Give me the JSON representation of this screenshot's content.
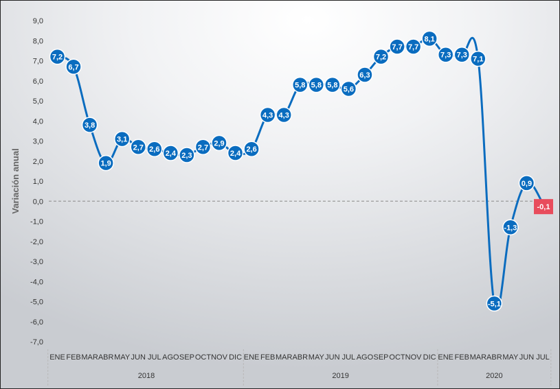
{
  "chart_data": {
    "type": "line",
    "ylabel": "Variación anual",
    "ylim": [
      -7,
      9
    ],
    "yticks": [
      "9,0",
      "8,0",
      "7,0",
      "6,0",
      "5,0",
      "4,0",
      "3,0",
      "2,0",
      "1,0",
      "0,0",
      "-1,0",
      "-2,0",
      "-3,0",
      "-4,0",
      "-5,0",
      "-6,0",
      "-7,0"
    ],
    "categories": [
      "ENE",
      "FEB",
      "MAR",
      "ABR",
      "MAY",
      "JUN",
      "JUL",
      "AGO",
      "SEP",
      "OCT",
      "NOV",
      "DIC",
      "ENE",
      "FEB",
      "MAR",
      "ABR",
      "MAY",
      "JUN",
      "JUL",
      "AGO",
      "SEP",
      "OCT",
      "NOV",
      "DIC",
      "ENE",
      "FEB",
      "MAR",
      "ABR",
      "MAY",
      "JUN",
      "JUL"
    ],
    "years": [
      "2018",
      "2019",
      "2020"
    ],
    "values": [
      7.2,
      6.7,
      3.8,
      1.9,
      3.1,
      2.7,
      2.6,
      2.4,
      2.3,
      2.7,
      2.9,
      2.4,
      2.6,
      4.3,
      4.3,
      5.8,
      5.8,
      5.8,
      5.6,
      6.3,
      7.2,
      7.7,
      7.7,
      8.1,
      7.3,
      7.3,
      7.1,
      -5.1,
      -1.3,
      0.9,
      -0.1
    ],
    "labels": [
      "7,2",
      "6,7",
      "3,8",
      "1,9",
      "3,1",
      "2,7",
      "2,6",
      "2,4",
      "2,3",
      "2,7",
      "2,9",
      "2,4",
      "2,6",
      "4,3",
      "4,3",
      "5,8",
      "5,8",
      "5,8",
      "5,6",
      "6,3",
      "7,2",
      "7,7",
      "7,7",
      "8,1",
      "7,3",
      "7,3",
      "7,1",
      "-5,1",
      "-1,3",
      "0,9",
      "-0,1"
    ],
    "highlight_last": true,
    "colors": {
      "line": "#0a6cbf",
      "marker": "#0a6cbf",
      "highlight": "#e84c5c",
      "zero_line": "#9a9a9a"
    },
    "grid": false
  }
}
